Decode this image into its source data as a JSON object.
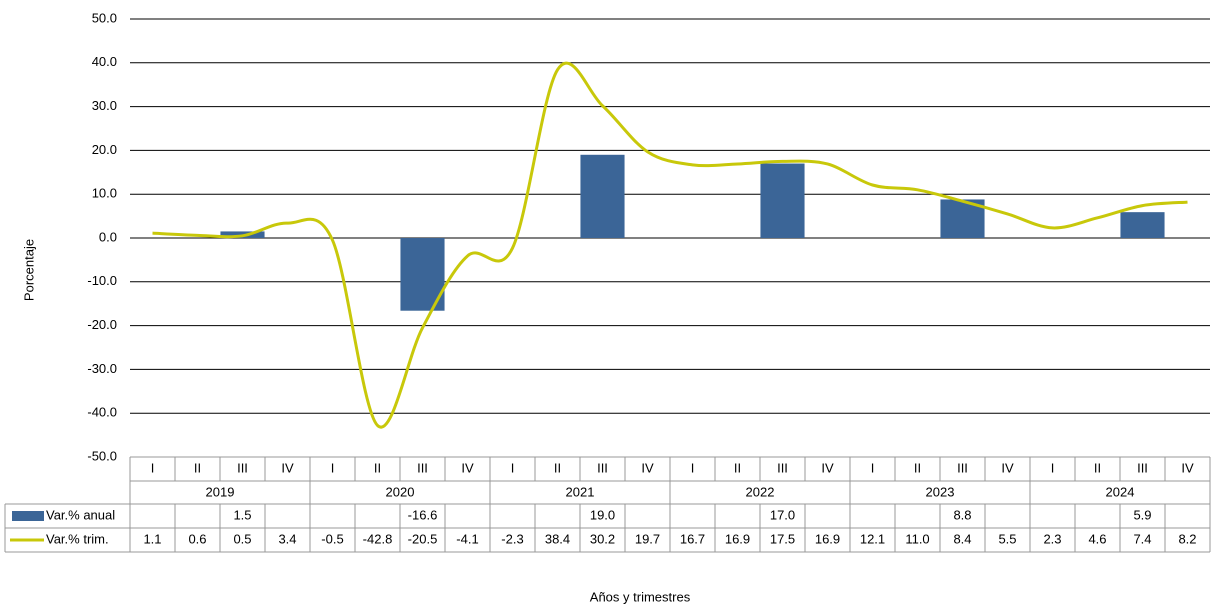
{
  "chart_data": {
    "type": "bar-line",
    "y_label": "Porcentaje",
    "x_label": "Años y trimestres",
    "categories": [
      "I",
      "II",
      "III",
      "IV",
      "I",
      "II",
      "III",
      "IV",
      "I",
      "II",
      "III",
      "IV",
      "I",
      "II",
      "III",
      "IV",
      "I",
      "II",
      "III",
      "IV",
      "I",
      "II",
      "III",
      "IV"
    ],
    "years": [
      "2019",
      "2020",
      "2021",
      "2022",
      "2023",
      "2024"
    ],
    "series": [
      {
        "name": "Var.% anual",
        "type": "bar",
        "color": "#3b6597",
        "values": [
          null,
          null,
          1.5,
          null,
          null,
          null,
          -16.6,
          null,
          null,
          null,
          19.0,
          null,
          null,
          null,
          17.0,
          null,
          null,
          null,
          8.8,
          null,
          null,
          null,
          5.9,
          null
        ],
        "value_labels": [
          null,
          null,
          "1.5",
          null,
          null,
          null,
          "-16.6",
          null,
          null,
          null,
          "19.0",
          null,
          null,
          null,
          "17.0",
          null,
          null,
          null,
          "8.8",
          null,
          null,
          null,
          "5.9",
          null
        ]
      },
      {
        "name": "Var.% trim.",
        "type": "line",
        "color": "#c8c80a",
        "values": [
          1.1,
          0.6,
          0.5,
          3.4,
          -0.5,
          -42.8,
          -20.5,
          -4.1,
          -2.3,
          38.4,
          30.2,
          19.7,
          16.7,
          16.9,
          17.5,
          16.9,
          12.1,
          11.0,
          8.4,
          5.5,
          2.3,
          4.6,
          7.4,
          8.2
        ],
        "value_labels": [
          "1.1",
          "0.6",
          "0.5",
          "3.4",
          "-0.5",
          "-42.8",
          "-20.5",
          "-4.1",
          "-2.3",
          "38.4",
          "30.2",
          "19.7",
          "16.7",
          "16.9",
          "17.5",
          "16.9",
          "12.1",
          "11.0",
          "8.4",
          "5.5",
          "2.3",
          "4.6",
          "7.4",
          "8.2"
        ]
      }
    ],
    "ylim": [
      -50,
      50
    ],
    "yticks": [
      {
        "value": -50,
        "label": "-50.0"
      },
      {
        "value": -40,
        "label": "-40.0"
      },
      {
        "value": -30,
        "label": "-30.0"
      },
      {
        "value": -20,
        "label": "-20.0"
      },
      {
        "value": -10,
        "label": "-10.0"
      },
      {
        "value": 0,
        "label": "0.0"
      },
      {
        "value": 10,
        "label": "10.0"
      },
      {
        "value": 20,
        "label": "20.0"
      },
      {
        "value": 30,
        "label": "30.0"
      },
      {
        "value": 40,
        "label": "40.0"
      },
      {
        "value": 50,
        "label": "50.0"
      }
    ],
    "grid": true
  }
}
